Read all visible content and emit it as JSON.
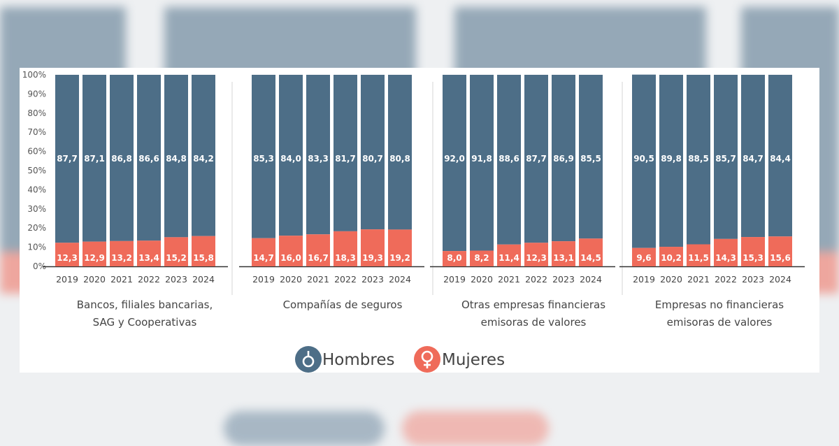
{
  "chart_data": {
    "type": "bar",
    "stacked": true,
    "ylim": [
      0,
      100
    ],
    "yticks": [
      "0%",
      "10%",
      "20%",
      "30%",
      "40%",
      "50%",
      "60%",
      "70%",
      "80%",
      "90%",
      "100%"
    ],
    "colors": {
      "hombres": "#4d6e87",
      "mujeres": "#ef6b5a"
    },
    "groups": [
      {
        "name": "Bancos, filiales bancarias, SAG y Cooperativas",
        "label_lines": [
          "Bancos, filiales bancarias,",
          "SAG y Cooperativas"
        ],
        "years": [
          "2019",
          "2020",
          "2021",
          "2022",
          "2023",
          "2024"
        ],
        "hombres": [
          "87,7",
          "87,1",
          "86,8",
          "86,6",
          "84,8",
          "84,2"
        ],
        "mujeres": [
          "12,3",
          "12,9",
          "13,2",
          "13,4",
          "15,2",
          "15,8"
        ]
      },
      {
        "name": "Compañías de seguros",
        "label_lines": [
          "Compañías de seguros"
        ],
        "years": [
          "2019",
          "2020",
          "2021",
          "2022",
          "2023",
          "2024"
        ],
        "hombres": [
          "85,3",
          "84,0",
          "83,3",
          "81,7",
          "80,7",
          "80,8"
        ],
        "mujeres": [
          "14,7",
          "16,0",
          "16,7",
          "18,3",
          "19,3",
          "19,2"
        ]
      },
      {
        "name": "Otras empresas financieras emisoras de valores",
        "label_lines": [
          "Otras empresas financieras",
          "emisoras de valores"
        ],
        "years": [
          "2019",
          "2020",
          "2021",
          "2022",
          "2023",
          "2024"
        ],
        "hombres": [
          "92,0",
          "91,8",
          "88,6",
          "87,7",
          "86,9",
          "85,5"
        ],
        "mujeres": [
          "8,0",
          "8,2",
          "11,4",
          "12,3",
          "13,1",
          "14,5"
        ]
      },
      {
        "name": "Empresas no financieras emisoras de valores",
        "label_lines": [
          "Empresas no financieras",
          "emisoras de valores"
        ],
        "years": [
          "2019",
          "2020",
          "2021",
          "2022",
          "2023",
          "2024"
        ],
        "hombres": [
          "90,5",
          "89,8",
          "88,5",
          "85,7",
          "84,7",
          "84,4"
        ],
        "mujeres": [
          "9,6",
          "10,2",
          "11,5",
          "14,3",
          "15,3",
          "15,6"
        ]
      }
    ],
    "legend": [
      {
        "key": "hombres",
        "label": "Hombres",
        "icon": "male-symbol-icon"
      },
      {
        "key": "mujeres",
        "label": "Mujeres",
        "icon": "female-symbol-icon"
      }
    ]
  }
}
